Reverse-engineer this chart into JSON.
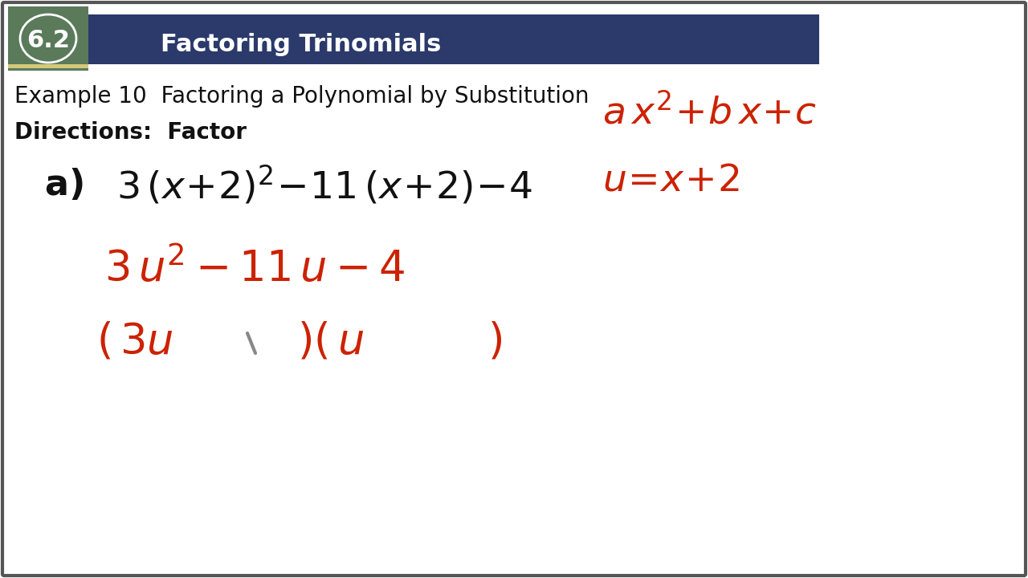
{
  "bg_color": "#ffffff",
  "header_bg": "#2b3a6b",
  "header_green_bg": "#5a7a5a",
  "header_number": "6.2",
  "header_title": "Factoring Trinomials",
  "example_text": "Example 10  Factoring a Polynomial by Substitution",
  "directions_text": "Directions:  Factor",
  "handwriting_color": "#cc2200",
  "black_text_color": "#111111",
  "header_text_color": "#ffffff",
  "outer_border_color": "#888888",
  "yellow_accent": "#d4c87a"
}
